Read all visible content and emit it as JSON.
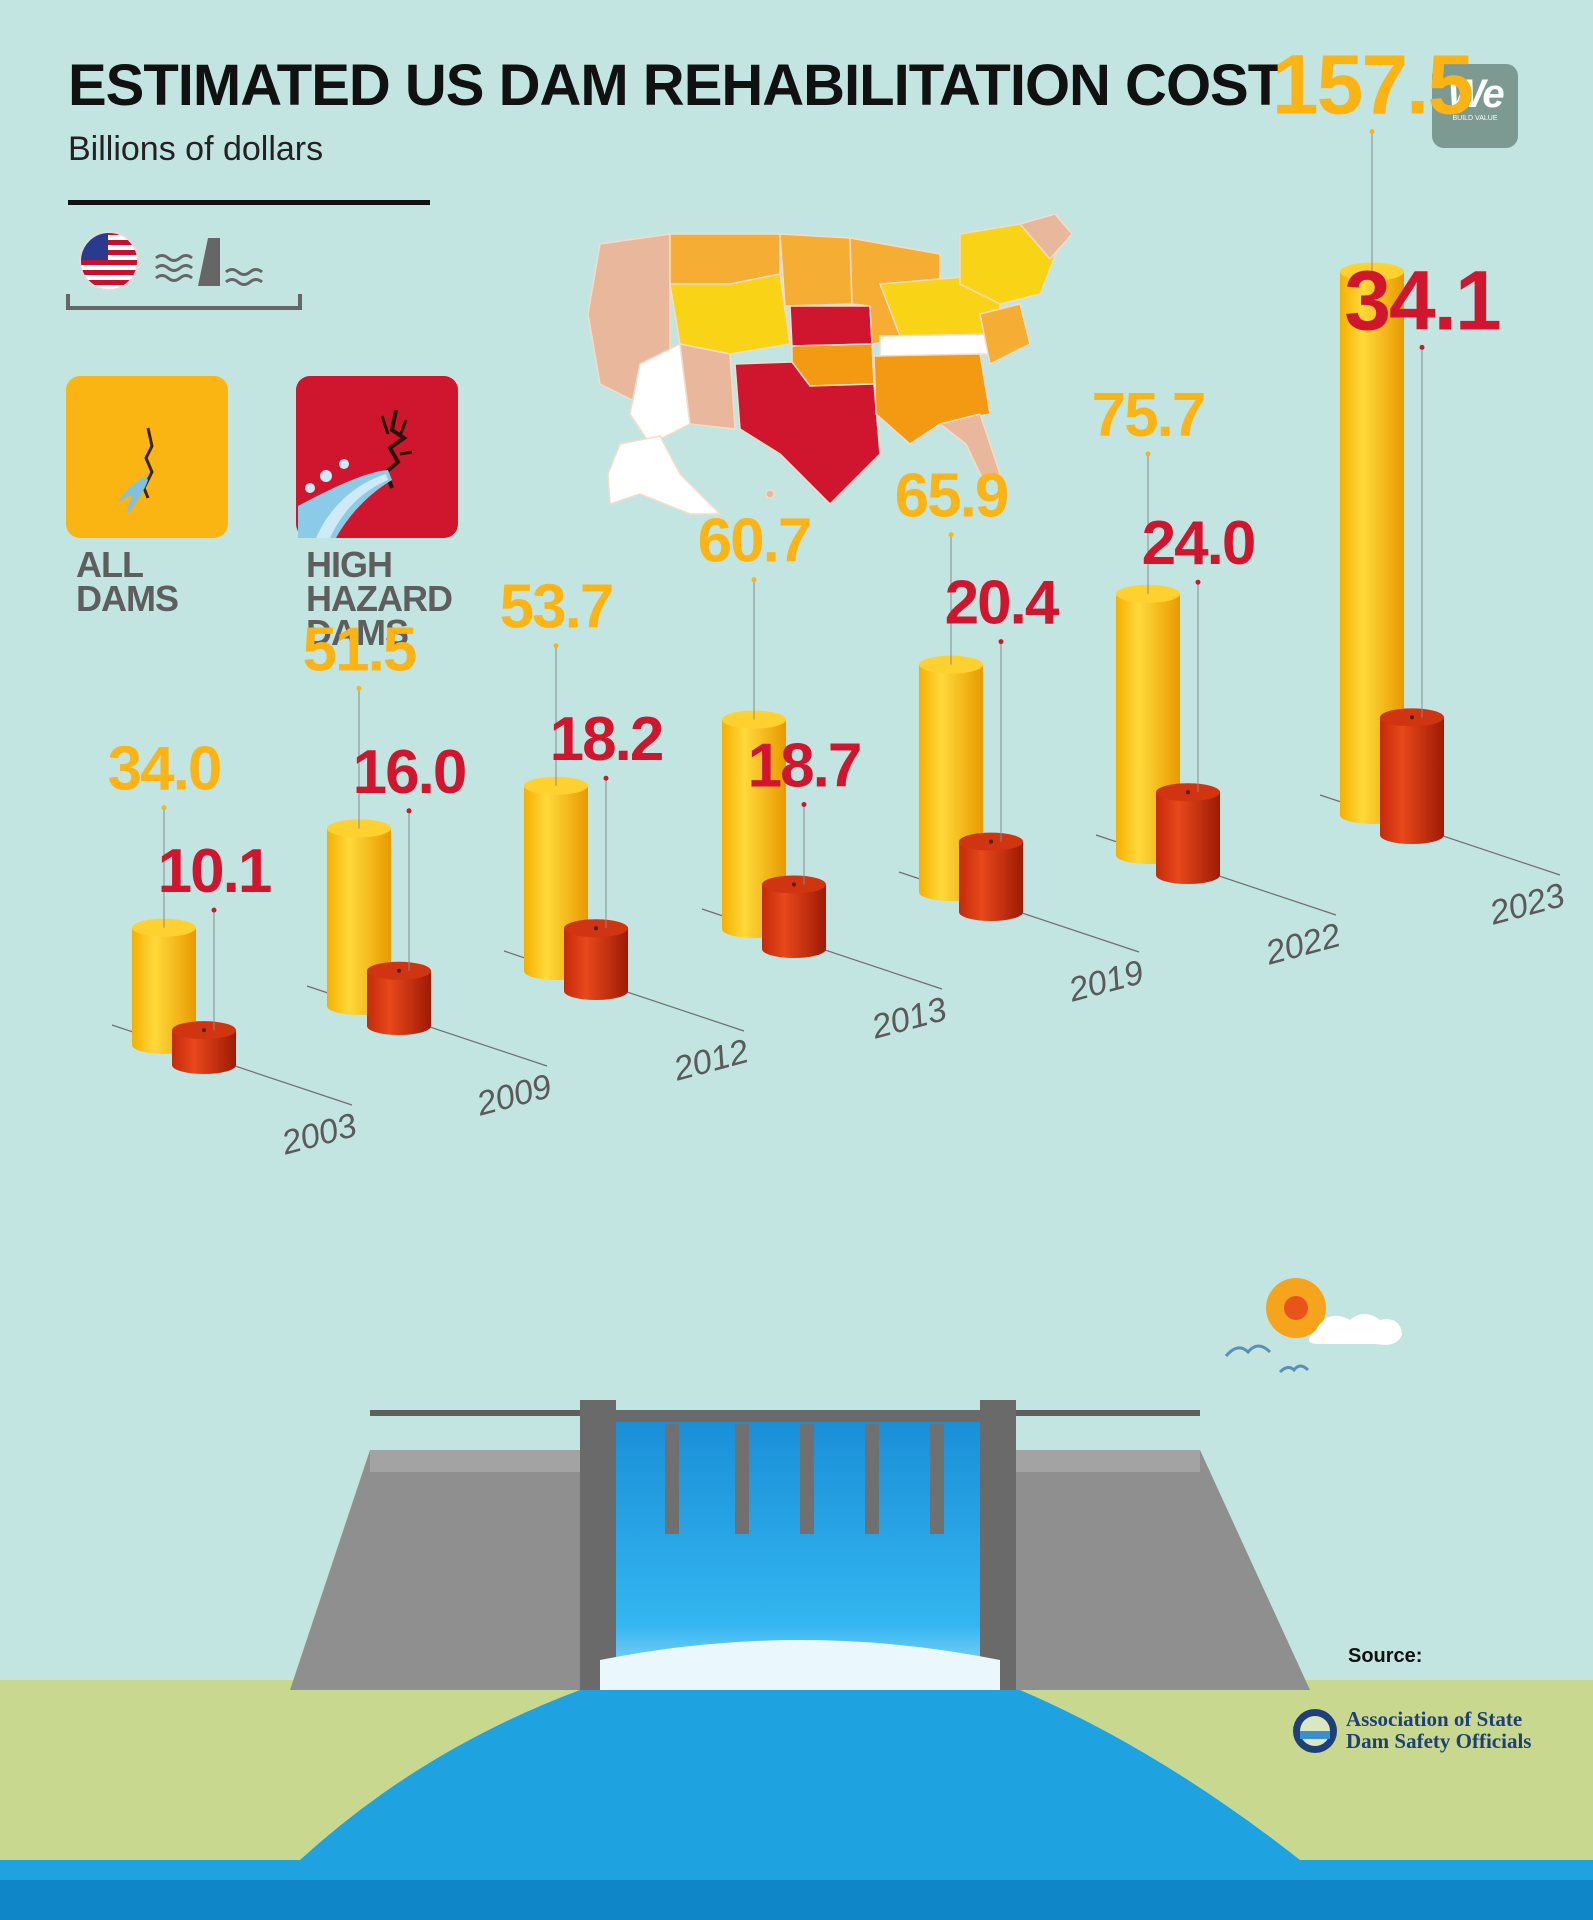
{
  "header": {
    "title": "ESTIMATED US DAM REHABILITATION COST",
    "subtitle": "Billions of dollars"
  },
  "logo": {
    "main": "We",
    "sub": "BUILD VALUE"
  },
  "icons": [
    "us-flag-icon",
    "dam-icon"
  ],
  "legend": {
    "all_dams": {
      "label": "ALL\nDAMS",
      "color": "#fbb513",
      "icon": "cracked-dam-icon"
    },
    "high_hazard": {
      "label": "HIGH\nHAZARD\nDAMS",
      "color": "#d0162e",
      "icon": "bursting-dam-icon"
    }
  },
  "colors": {
    "all_label": "#fcb414",
    "high_label": "#d0162e",
    "year_label": "#5a5a5a",
    "background": "#c3e5e1"
  },
  "chart_data": {
    "type": "bar",
    "title": "ESTIMATED US DAM REHABILITATION COST",
    "subtitle": "Billions of dollars",
    "categories": [
      "2003",
      "2009",
      "2012",
      "2013",
      "2019",
      "2022",
      "2023"
    ],
    "series": [
      {
        "name": "ALL DAMS",
        "values": [
          34.0,
          51.5,
          53.7,
          60.7,
          65.9,
          75.7,
          157.5
        ]
      },
      {
        "name": "HIGH HAZARD DAMS",
        "values": [
          10.1,
          16.0,
          18.2,
          18.7,
          20.4,
          24.0,
          34.1
        ]
      }
    ],
    "value_labels": {
      "all": [
        "34.0",
        "51.5",
        "53.7",
        "60.7",
        "65.9",
        "75.7",
        "157.5"
      ],
      "high": [
        "10.1",
        "16.0",
        "18.2",
        "18.7",
        "20.4",
        "24.0",
        "34.1"
      ]
    },
    "legend": "top-left"
  },
  "source": {
    "label": "Source:",
    "org": "Association of State\nDam Safety Officials"
  }
}
